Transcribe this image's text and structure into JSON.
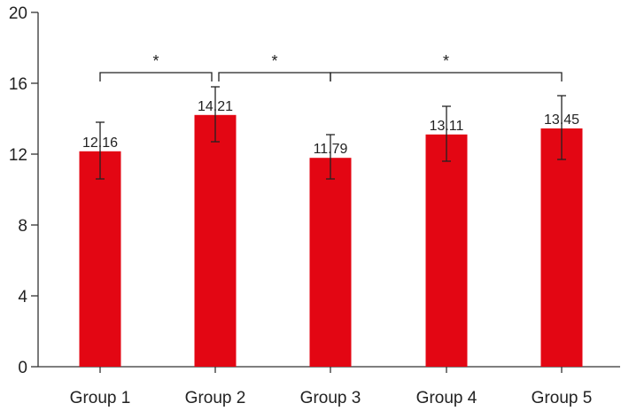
{
  "chart_data": {
    "type": "bar",
    "categories": [
      "Group 1",
      "Group 2",
      "Group 3",
      "Group 4",
      "Group 5"
    ],
    "values": [
      12.16,
      14.21,
      11.79,
      13.11,
      13.45
    ],
    "value_labels": [
      "12.16",
      "14.21",
      "11.79",
      "13.11",
      "13.45"
    ],
    "error_bars": [
      {
        "low": 10.6,
        "high": 13.8
      },
      {
        "low": 12.7,
        "high": 15.8
      },
      {
        "low": 10.6,
        "high": 13.1
      },
      {
        "low": 11.6,
        "high": 14.7
      },
      {
        "low": 11.7,
        "high": 15.3
      }
    ],
    "ylim": [
      0,
      20
    ],
    "yticks": [
      0,
      4,
      8,
      12,
      16,
      20
    ],
    "ytick_labels": [
      "0",
      "4",
      "8",
      "12",
      "16",
      "20"
    ],
    "significance": [
      {
        "from": 0,
        "to": 1,
        "label": "*"
      },
      {
        "from": 1,
        "to": 2,
        "label": "*"
      },
      {
        "from": 2,
        "to": 4,
        "label": "*"
      }
    ],
    "bar_color": "#e30613",
    "title": "",
    "xlabel": "",
    "ylabel": "",
    "grid": false
  }
}
